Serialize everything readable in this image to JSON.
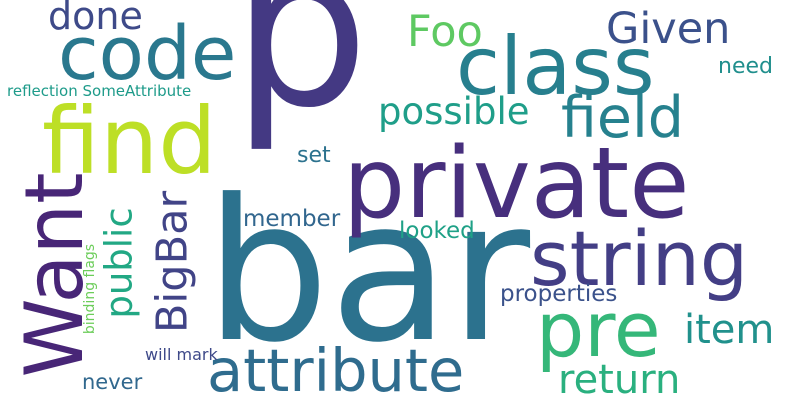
{
  "words": [
    {
      "text": "p",
      "color": "#443983"
    },
    {
      "text": "bar",
      "color": "#2c728e"
    },
    {
      "text": "private",
      "color": "#472f7d"
    },
    {
      "text": "class",
      "color": "#277f8e"
    },
    {
      "text": "code",
      "color": "#2a788e"
    },
    {
      "text": "find",
      "color": "#bddf26"
    },
    {
      "text": "string",
      "color": "#433e85"
    },
    {
      "text": "attribute",
      "color": "#2f6c8e"
    },
    {
      "text": "pre",
      "color": "#35b779"
    },
    {
      "text": "Want",
      "color": "#482677"
    },
    {
      "text": "field",
      "color": "#26818e"
    },
    {
      "text": "Given",
      "color": "#3b518b"
    },
    {
      "text": "Foo",
      "color": "#5ec962"
    },
    {
      "text": "done",
      "color": "#3e4a89"
    },
    {
      "text": "possible",
      "color": "#1f9e89"
    },
    {
      "text": "BigBar",
      "color": "#414487"
    },
    {
      "text": "public",
      "color": "#22a884"
    },
    {
      "text": "item",
      "color": "#21918c"
    },
    {
      "text": "return",
      "color": "#2ab07f"
    },
    {
      "text": "properties",
      "color": "#3b528b"
    },
    {
      "text": "looked",
      "color": "#1fa187"
    },
    {
      "text": "member",
      "color": "#31668e"
    },
    {
      "text": "set",
      "color": "#2c728e"
    },
    {
      "text": "need",
      "color": "#218f8d"
    },
    {
      "text": "reflection SomeAttribute",
      "color": "#1e9b8a"
    },
    {
      "text": "binding flags",
      "color": "#6ccd5a"
    },
    {
      "text": "will mark",
      "color": "#3e4989"
    },
    {
      "text": "never",
      "color": "#31688e"
    }
  ]
}
